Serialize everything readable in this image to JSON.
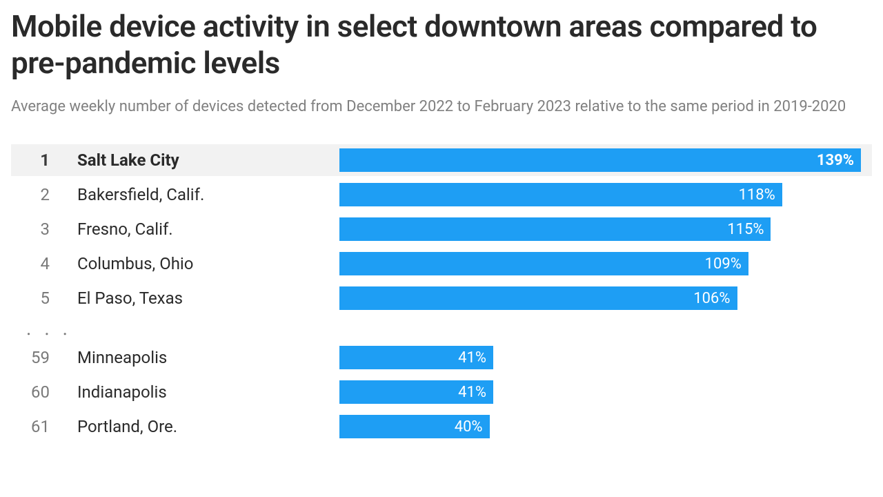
{
  "title": "Mobile device activity in select downtown areas compared to pre-pandemic levels",
  "subtitle": "Average weekly number of devices detected from December 2022 to February 2023 relative to the same period in 2019-2020",
  "ellipsis": ". . .",
  "chart": {
    "type": "bar",
    "bar_color": "#1e9ef4",
    "bar_text_color": "#ffffff",
    "highlight_bg": "#f2f2f2",
    "max_value": 139,
    "value_suffix": "%",
    "top_rows": [
      {
        "rank": 1,
        "city": "Salt Lake City",
        "value": 139,
        "highlight": true
      },
      {
        "rank": 2,
        "city": "Bakersfield, Calif.",
        "value": 118,
        "highlight": false
      },
      {
        "rank": 3,
        "city": "Fresno, Calif.",
        "value": 115,
        "highlight": false
      },
      {
        "rank": 4,
        "city": "Columbus, Ohio",
        "value": 109,
        "highlight": false
      },
      {
        "rank": 5,
        "city": "El Paso, Texas",
        "value": 106,
        "highlight": false
      }
    ],
    "bottom_rows": [
      {
        "rank": 59,
        "city": "Minneapolis",
        "value": 41,
        "highlight": false
      },
      {
        "rank": 60,
        "city": "Indianapolis",
        "value": 41,
        "highlight": false
      },
      {
        "rank": 61,
        "city": "Portland, Ore.",
        "value": 40,
        "highlight": false
      }
    ]
  }
}
